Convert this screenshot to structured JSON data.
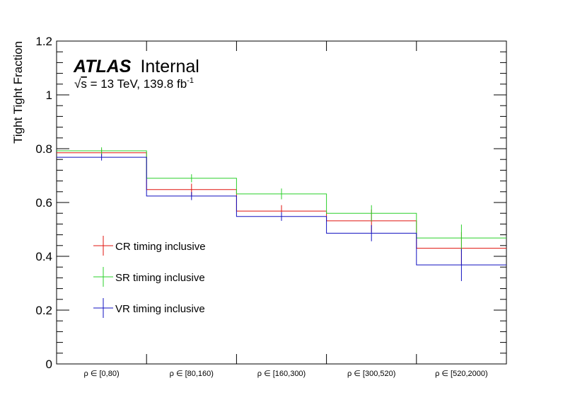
{
  "chart_data": {
    "type": "histogram-step",
    "title": "",
    "ylabel": "Tight Tight Fraction",
    "xlabel": "",
    "ylim": [
      0,
      1.2
    ],
    "y_ticks": [
      "0",
      "0.2",
      "0.4",
      "0.6",
      "0.8",
      "1",
      "1.2"
    ],
    "categories": [
      "ρ ∈ [0,80)",
      "ρ ∈ [80,160)",
      "ρ ∈ [160,300)",
      "ρ ∈ [300,520)",
      "ρ ∈ [520,2000)"
    ],
    "atlas": {
      "bold": "ATLAS",
      "suffix": "Internal"
    },
    "energy": {
      "sqrt_symbol": "√",
      "s": "s",
      "text": " = 13 TeV, 139.8 fb",
      "sup": "-1"
    },
    "series": [
      {
        "name": "CR timing inclusive",
        "color": "#e0140f",
        "values": [
          0.785,
          0.648,
          0.568,
          0.532,
          0.43
        ],
        "errors": [
          0.013,
          0.022,
          0.022,
          0.042,
          0.06
        ]
      },
      {
        "name": "SR timing inclusive",
        "color": "#2bd02b",
        "values": [
          0.792,
          0.69,
          0.632,
          0.56,
          0.468
        ],
        "errors": [
          0.013,
          0.015,
          0.02,
          0.03,
          0.05
        ]
      },
      {
        "name": "VR timing inclusive",
        "color": "#1010c0",
        "values": [
          0.768,
          0.624,
          0.548,
          0.486,
          0.368
        ],
        "errors": [
          0.012,
          0.015,
          0.016,
          0.03,
          0.06
        ]
      }
    ]
  }
}
